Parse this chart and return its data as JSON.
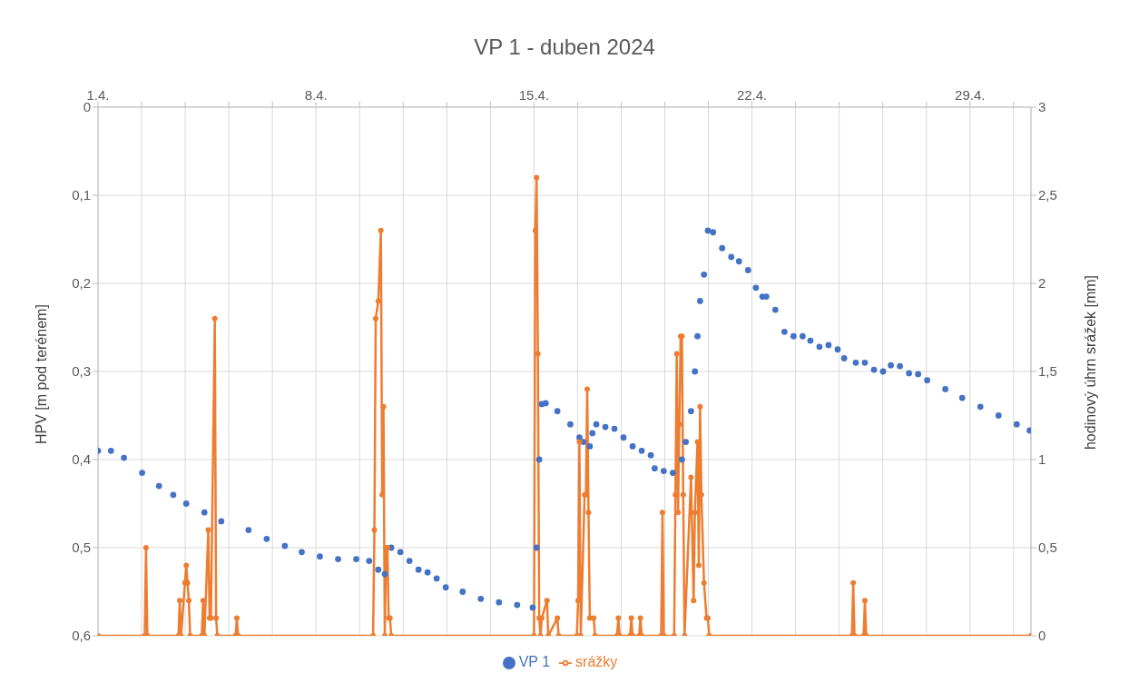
{
  "chart_data": {
    "type": "line",
    "title": "VP 1 - duben 2024",
    "ylabel": "HPV [m pod terénem]",
    "y2label": "hodinový úhrn srážek [mm]",
    "xlim": [
      "2024-04-01",
      "2024-04-30T23:00"
    ],
    "xticks": [
      {
        "value": "2024-04-01",
        "label": "1.4."
      },
      {
        "value": "2024-04-02T09:36",
        "label": null
      },
      {
        "value": "2024-04-03T19:12",
        "label": null
      },
      {
        "value": "2024-04-05T04:48",
        "label": null
      },
      {
        "value": "2024-04-06T14:24",
        "label": null
      },
      {
        "value": "2024-04-08",
        "label": "8.4."
      },
      {
        "value": "2024-04-09T09:36",
        "label": null
      },
      {
        "value": "2024-04-10T19:12",
        "label": null
      },
      {
        "value": "2024-04-12T04:48",
        "label": null
      },
      {
        "value": "2024-04-13T14:24",
        "label": null
      },
      {
        "value": "2024-04-15",
        "label": "15.4."
      },
      {
        "value": "2024-04-16T09:36",
        "label": null
      },
      {
        "value": "2024-04-17T19:12",
        "label": null
      },
      {
        "value": "2024-04-19T04:48",
        "label": null
      },
      {
        "value": "2024-04-20T14:24",
        "label": null
      },
      {
        "value": "2024-04-22",
        "label": "22.4."
      },
      {
        "value": "2024-04-23T09:36",
        "label": null
      },
      {
        "value": "2024-04-24T19:12",
        "label": null
      },
      {
        "value": "2024-04-26T04:48",
        "label": null
      },
      {
        "value": "2024-04-27T14:24",
        "label": null
      },
      {
        "value": "2024-04-29",
        "label": "29.4."
      },
      {
        "value": "2024-04-30T09:36",
        "label": null
      }
    ],
    "ylim": [
      0.6,
      0
    ],
    "yticks": [
      0,
      {
        "value": 0.1,
        "label": "0,1"
      },
      {
        "value": 0.2,
        "label": "0,2"
      },
      {
        "value": 0.3,
        "label": "0,3"
      },
      {
        "value": 0.4,
        "label": "0,4"
      },
      {
        "value": 0.5,
        "label": "0,5"
      },
      {
        "value": 0.6,
        "label": "0,6"
      }
    ],
    "y2lim": [
      0,
      3
    ],
    "y2ticks": [
      0,
      {
        "value": 0.5,
        "label": "0,5"
      },
      1,
      {
        "value": 1.5,
        "label": "1,5"
      },
      2,
      {
        "value": 2.5,
        "label": "2,5"
      },
      3
    ],
    "grid": true,
    "legend": "bottom",
    "marker": "circle",
    "series": [
      {
        "name": "VP 1",
        "type": "scatter",
        "color": "#4472c4",
        "x": [
          "2024-04-01T00:00",
          "2024-04-01T10:00",
          "2024-04-01T20:00",
          "2024-04-02T10:00",
          "2024-04-02T23:00",
          "2024-04-03T10:00",
          "2024-04-03T20:00",
          "2024-04-04T10:00",
          "2024-04-04T23:00",
          "2024-04-05T20:00",
          "2024-04-06T10:00",
          "2024-04-07T00:00",
          "2024-04-07T13:00",
          "2024-04-08T03:00",
          "2024-04-08T17:00",
          "2024-04-09T07:00",
          "2024-04-09T17:00",
          "2024-04-10T00:00",
          "2024-04-10T05:00",
          "2024-04-10T10:00",
          "2024-04-10T17:00",
          "2024-04-11T00:00",
          "2024-04-11T07:00",
          "2024-04-11T14:00",
          "2024-04-11T21:00",
          "2024-04-12T04:00",
          "2024-04-12T17:00",
          "2024-04-13T07:00",
          "2024-04-13T21:00",
          "2024-04-14T11:00",
          "2024-04-14T23:00",
          "2024-04-15T02:00",
          "2024-04-15T04:00",
          "2024-04-15T06:00",
          "2024-04-15T09:00",
          "2024-04-15T18:00",
          "2024-04-16T04:00",
          "2024-04-16T11:00",
          "2024-04-16T14:00",
          "2024-04-16T19:00",
          "2024-04-16T21:00",
          "2024-04-17T00:00",
          "2024-04-17T07:00",
          "2024-04-17T14:00",
          "2024-04-17T21:00",
          "2024-04-18T04:00",
          "2024-04-18T11:00",
          "2024-04-18T18:00",
          "2024-04-18T21:00",
          "2024-04-19T04:00",
          "2024-04-19T11:00",
          "2024-04-19T18:00",
          "2024-04-19T21:00",
          "2024-04-20T01:00",
          "2024-04-20T04:00",
          "2024-04-20T06:00",
          "2024-04-20T08:00",
          "2024-04-20T11:00",
          "2024-04-20T14:00",
          "2024-04-20T18:00",
          "2024-04-21T01:00",
          "2024-04-21T08:00",
          "2024-04-21T14:00",
          "2024-04-21T21:00",
          "2024-04-22T03:00",
          "2024-04-22T08:00",
          "2024-04-22T11:00",
          "2024-04-22T18:00",
          "2024-04-23T01:00",
          "2024-04-23T08:00",
          "2024-04-23T15:00",
          "2024-04-23T21:00",
          "2024-04-24T04:00",
          "2024-04-24T11:00",
          "2024-04-24T18:00",
          "2024-04-24T23:00",
          "2024-04-25T08:00",
          "2024-04-25T15:00",
          "2024-04-25T22:00",
          "2024-04-26T05:00",
          "2024-04-26T11:00",
          "2024-04-26T18:00",
          "2024-04-27T01:00",
          "2024-04-27T08:00",
          "2024-04-27T15:00",
          "2024-04-28T05:00",
          "2024-04-28T18:00",
          "2024-04-29T08:00",
          "2024-04-29T22:00",
          "2024-04-30T12:00",
          "2024-04-30T22:00"
        ],
        "values": [
          0.39,
          0.39,
          0.398,
          0.415,
          0.43,
          0.44,
          0.45,
          0.46,
          0.47,
          0.48,
          0.49,
          0.498,
          0.505,
          0.51,
          0.513,
          0.513,
          0.515,
          0.525,
          0.53,
          0.5,
          0.505,
          0.515,
          0.525,
          0.528,
          0.535,
          0.545,
          0.55,
          0.558,
          0.562,
          0.565,
          0.568,
          0.5,
          0.4,
          0.337,
          0.336,
          0.345,
          0.36,
          0.375,
          0.38,
          0.385,
          0.37,
          0.36,
          0.363,
          0.365,
          0.375,
          0.385,
          0.39,
          0.395,
          0.41,
          0.413,
          0.415,
          0.4,
          0.38,
          0.345,
          0.3,
          0.26,
          0.22,
          0.19,
          0.14,
          0.142,
          0.16,
          0.17,
          0.175,
          0.185,
          0.205,
          0.215,
          0.215,
          0.23,
          0.255,
          0.26,
          0.26,
          0.265,
          0.272,
          0.27,
          0.275,
          0.285,
          0.29,
          0.29,
          0.298,
          0.3,
          0.293,
          0.294,
          0.302,
          0.303,
          0.31,
          0.32,
          0.33,
          0.34,
          0.35,
          0.36,
          0.367
        ]
      },
      {
        "name": "srážky",
        "axis": "y2",
        "color": "#ed7d31",
        "x": [
          "2024-04-01T00:00",
          "2024-04-02T12:00",
          "2024-04-02T13:00",
          "2024-04-02T14:00",
          "2024-04-03T14:00",
          "2024-04-03T15:00",
          "2024-04-03T16:00",
          "2024-04-03T19:00",
          "2024-04-03T20:00",
          "2024-04-03T21:00",
          "2024-04-03T22:00",
          "2024-04-03T23:00",
          "2024-04-04T08:00",
          "2024-04-04T09:00",
          "2024-04-04T10:00",
          "2024-04-04T13:00",
          "2024-04-04T14:00",
          "2024-04-04T15:00",
          "2024-04-04T18:00",
          "2024-04-04T19:00",
          "2024-04-04T20:00",
          "2024-04-05T10:00",
          "2024-04-05T11:00",
          "2024-04-05T12:00",
          "2024-04-09T20:00",
          "2024-04-09T21:00",
          "2024-04-09T22:00",
          "2024-04-10T00:00",
          "2024-04-10T02:00",
          "2024-04-10T03:00",
          "2024-04-10T04:00",
          "2024-04-10T05:00",
          "2024-04-10T06:00",
          "2024-04-10T07:00",
          "2024-04-10T08:00",
          "2024-04-10T09:00",
          "2024-04-10T10:00",
          "2024-04-15T00:00",
          "2024-04-15T01:00",
          "2024-04-15T02:00",
          "2024-04-15T03:00",
          "2024-04-15T04:00",
          "2024-04-15T05:00",
          "2024-04-15T06:00",
          "2024-04-15T10:00",
          "2024-04-15T11:00",
          "2024-04-15T18:00",
          "2024-04-15T19:00",
          "2024-04-16T09:00",
          "2024-04-16T10:00",
          "2024-04-16T11:00",
          "2024-04-16T12:00",
          "2024-04-16T15:00",
          "2024-04-16T16:00",
          "2024-04-16T17:00",
          "2024-04-16T18:00",
          "2024-04-16T19:00",
          "2024-04-16T22:00",
          "2024-04-16T23:00",
          "2024-04-17T16:00",
          "2024-04-17T17:00",
          "2024-04-17T18:00",
          "2024-04-18T02:00",
          "2024-04-18T03:00",
          "2024-04-18T04:00",
          "2024-04-18T09:00",
          "2024-04-18T10:00",
          "2024-04-18T11:00",
          "2024-04-19T02:00",
          "2024-04-19T03:00",
          "2024-04-19T04:00",
          "2024-04-19T12:00",
          "2024-04-19T13:00",
          "2024-04-19T14:00",
          "2024-04-19T15:00",
          "2024-04-19T16:00",
          "2024-04-19T17:00",
          "2024-04-19T18:00",
          "2024-04-19T19:00",
          "2024-04-19T20:00",
          "2024-04-20T01:00",
          "2024-04-20T03:00",
          "2024-04-20T04:00",
          "2024-04-20T06:00",
          "2024-04-20T07:00",
          "2024-04-20T08:00",
          "2024-04-20T09:00",
          "2024-04-20T11:00",
          "2024-04-20T13:00",
          "2024-04-20T14:00",
          "2024-04-20T15:00",
          "2024-04-25T05:00",
          "2024-04-25T06:00",
          "2024-04-25T07:00",
          "2024-04-25T14:00",
          "2024-04-25T15:00",
          "2024-04-25T16:00",
          "2024-04-30T23:00"
        ],
        "values": [
          0,
          0,
          0.5,
          0,
          0,
          0.2,
          0,
          0.3,
          0.4,
          0.3,
          0.2,
          0,
          0,
          0.2,
          0,
          0.6,
          0.1,
          0.1,
          1.8,
          0.1,
          0,
          0,
          0.1,
          0,
          0,
          0.6,
          1.8,
          1.9,
          2.3,
          0.8,
          1.3,
          0,
          0.5,
          0.5,
          0.1,
          0.1,
          0,
          0,
          2.3,
          2.6,
          1.6,
          0.1,
          0,
          0.1,
          0.2,
          0,
          0.1,
          0,
          0,
          0.2,
          1.1,
          0,
          0.8,
          0.8,
          1.4,
          0.7,
          0.1,
          0.1,
          0,
          0,
          0.1,
          0,
          0,
          0.1,
          0,
          0,
          0.1,
          0,
          0,
          0.7,
          0,
          0,
          0.8,
          1.6,
          0.7,
          1.2,
          1.7,
          1.7,
          0.8,
          0,
          0.9,
          0.2,
          0.7,
          1.1,
          0.4,
          1.3,
          0.8,
          0.3,
          0.1,
          0.1,
          0,
          0,
          0.3,
          0,
          0,
          0.2,
          0,
          0
        ]
      }
    ]
  }
}
